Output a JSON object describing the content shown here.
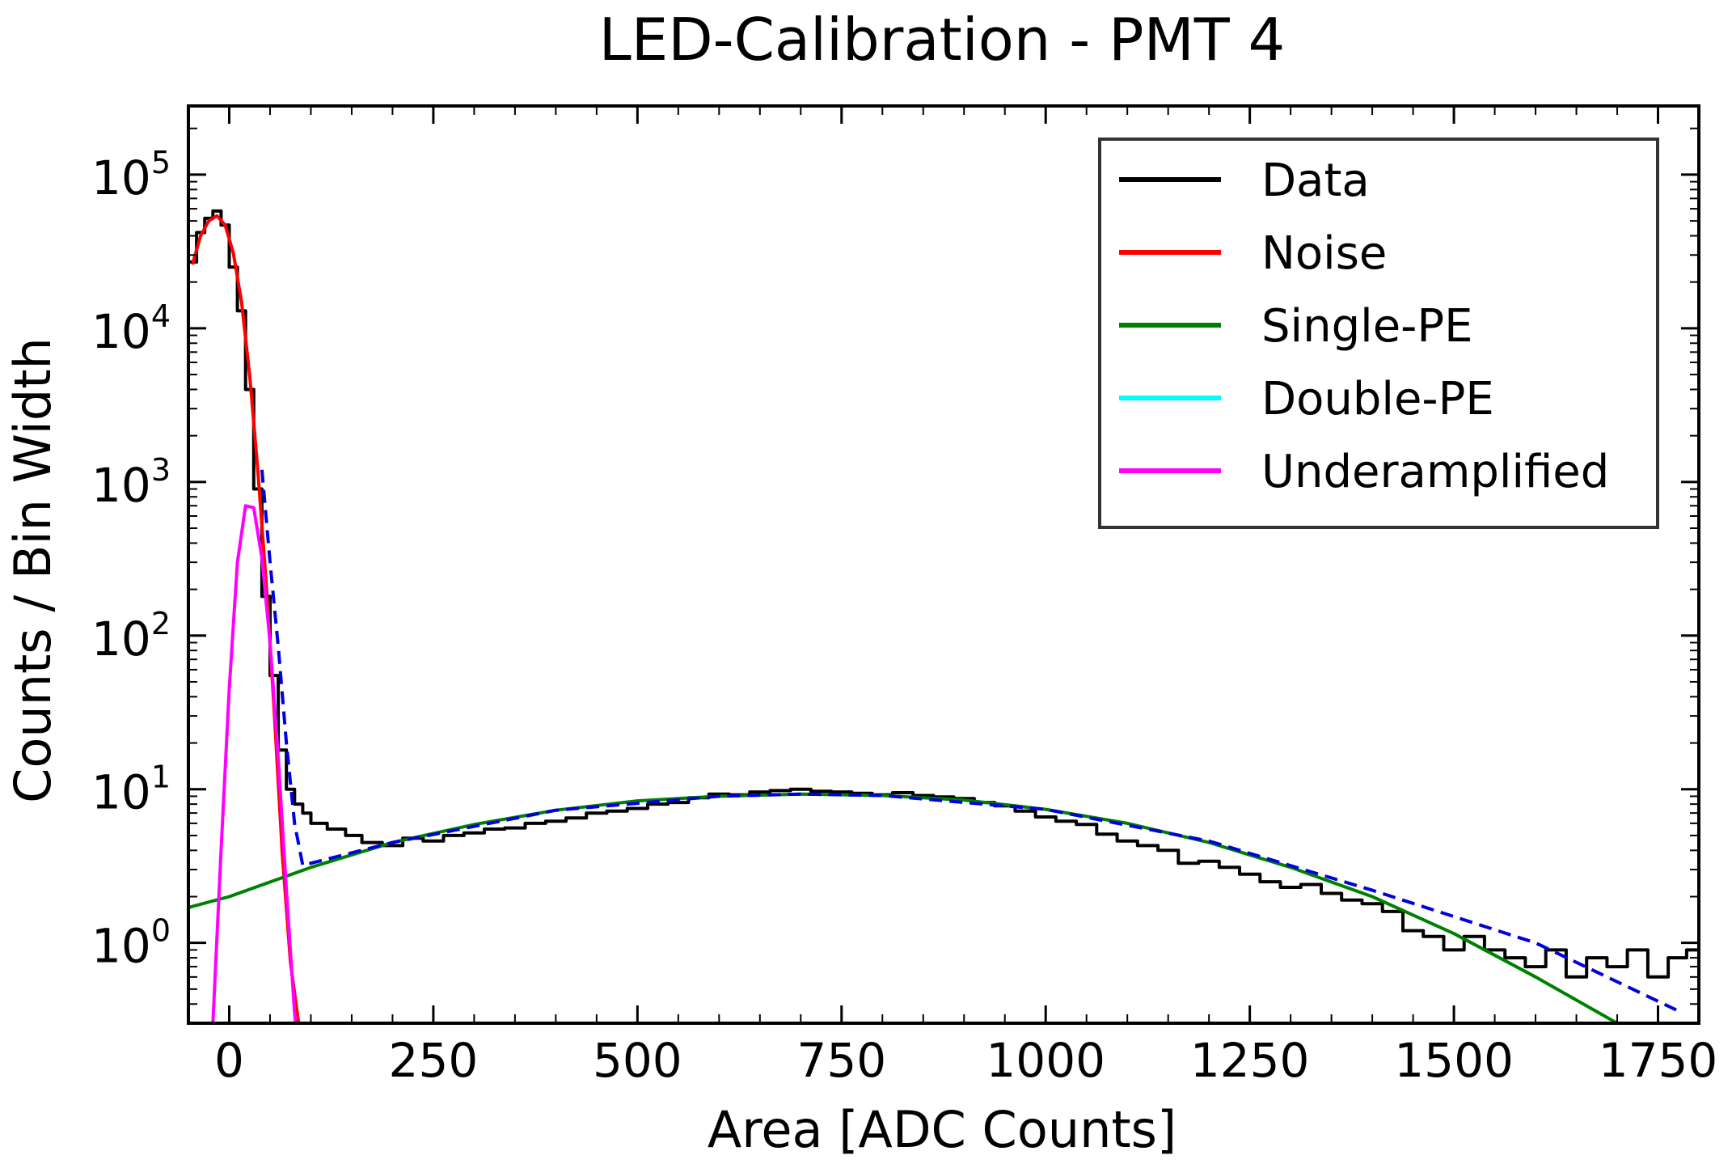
{
  "chart_data": {
    "type": "line",
    "title": "LED-Calibration - PMT 4",
    "xlabel": "Area [ADC Counts]",
    "ylabel": "Counts / Bin Width",
    "xlim": [
      -50,
      1800
    ],
    "ylim": [
      0.3,
      280000
    ],
    "yscale": "log",
    "grid": false,
    "legend_position": "top-right",
    "x_ticks": [
      0,
      250,
      500,
      750,
      1000,
      1250,
      1500,
      1750
    ],
    "y_ticks": [
      {
        "value": 1,
        "base": "10",
        "exp": "0"
      },
      {
        "value": 10,
        "base": "10",
        "exp": "1"
      },
      {
        "value": 100,
        "base": "10",
        "exp": "2"
      },
      {
        "value": 1000,
        "base": "10",
        "exp": "3"
      },
      {
        "value": 10000,
        "base": "10",
        "exp": "4"
      },
      {
        "value": 100000,
        "base": "10",
        "exp": "5"
      }
    ],
    "series": [
      {
        "name": "Data",
        "color": "#000000",
        "style": "step",
        "x": [
          -45,
          -35,
          -25,
          -15,
          -5,
          5,
          15,
          25,
          35,
          45,
          55,
          65,
          75,
          85,
          95,
          105,
          115,
          125,
          135,
          150,
          175,
          200,
          225,
          250,
          275,
          300,
          325,
          350,
          375,
          400,
          425,
          450,
          475,
          500,
          525,
          550,
          575,
          600,
          625,
          650,
          675,
          700,
          725,
          750,
          775,
          800,
          825,
          850,
          875,
          900,
          925,
          950,
          975,
          1000,
          1025,
          1050,
          1075,
          1100,
          1125,
          1150,
          1175,
          1200,
          1225,
          1250,
          1275,
          1300,
          1325,
          1350,
          1375,
          1400,
          1425,
          1450,
          1475,
          1500,
          1525,
          1550,
          1575,
          1600,
          1625,
          1650,
          1675,
          1700,
          1725,
          1750,
          1775,
          1795
        ],
        "y": [
          27000,
          42000,
          52000,
          58000,
          47000,
          25000,
          13000,
          4000,
          900,
          180,
          55,
          18,
          10,
          8,
          7,
          6,
          6,
          5.5,
          5.5,
          5,
          4.5,
          4.3,
          4.8,
          4.6,
          5,
          5.2,
          5.5,
          5.6,
          6,
          6.2,
          6.5,
          7,
          7.2,
          7.5,
          8,
          8.2,
          8.8,
          9.3,
          9.2,
          9.6,
          9.8,
          10,
          9.7,
          9.6,
          9.4,
          9.2,
          9.5,
          9.1,
          8.9,
          8.7,
          8.2,
          7.8,
          7.2,
          6.6,
          6.2,
          5.9,
          5.1,
          4.6,
          4.3,
          4.0,
          3.3,
          3.4,
          3.1,
          2.8,
          2.5,
          2.3,
          2.4,
          2.1,
          1.9,
          1.8,
          1.6,
          1.2,
          1.1,
          0.9,
          1.1,
          0.9,
          0.8,
          0.7,
          0.9,
          0.6,
          0.8,
          0.7,
          0.9,
          0.6,
          0.8,
          0.9
        ]
      },
      {
        "name": "Noise",
        "color": "#ff0000",
        "style": "line",
        "x": [
          -45,
          -35,
          -25,
          -15,
          -5,
          5,
          15,
          25,
          35,
          45,
          55,
          65,
          75,
          85,
          92
        ],
        "y": [
          26000,
          40000,
          50000,
          54000,
          47000,
          31000,
          15000,
          5000,
          1200,
          230,
          33,
          3.8,
          0.75,
          0.3,
          0.1
        ]
      },
      {
        "name": "Single-PE",
        "color": "#008000",
        "style": "line",
        "x": [
          -50,
          0,
          100,
          200,
          300,
          400,
          500,
          600,
          700,
          800,
          900,
          1000,
          1100,
          1200,
          1300,
          1400,
          1500,
          1600,
          1700,
          1750
        ],
        "y": [
          1.7,
          2.0,
          3.1,
          4.5,
          5.9,
          7.3,
          8.4,
          9.0,
          9.3,
          9.1,
          8.5,
          7.4,
          6.0,
          4.5,
          3.1,
          2.0,
          1.15,
          0.6,
          0.3,
          0.2
        ]
      },
      {
        "name": "Double-PE",
        "color": "#00ffff",
        "style": "line",
        "x": [],
        "y": []
      },
      {
        "name": "Underamplified",
        "color": "#ff00ff",
        "style": "line",
        "x": [
          -25,
          -20,
          -10,
          0,
          10,
          20,
          30,
          40,
          50,
          60,
          70,
          80,
          90
        ],
        "y": [
          0.15,
          0.3,
          4,
          45,
          300,
          700,
          680,
          320,
          90,
          16,
          2.2,
          0.35,
          0.1
        ]
      },
      {
        "name": "",
        "color": "#0000dd",
        "style": "dashed",
        "x": [
          40,
          50,
          60,
          70,
          80,
          90,
          100,
          200,
          400,
          600,
          700,
          800,
          1000,
          1200,
          1400,
          1600,
          1780
        ],
        "y": [
          1200,
          300,
          85,
          20,
          6,
          3.2,
          3.3,
          4.5,
          7.3,
          9.0,
          9.3,
          9.1,
          7.4,
          4.6,
          2.2,
          1.0,
          0.35
        ]
      }
    ]
  }
}
